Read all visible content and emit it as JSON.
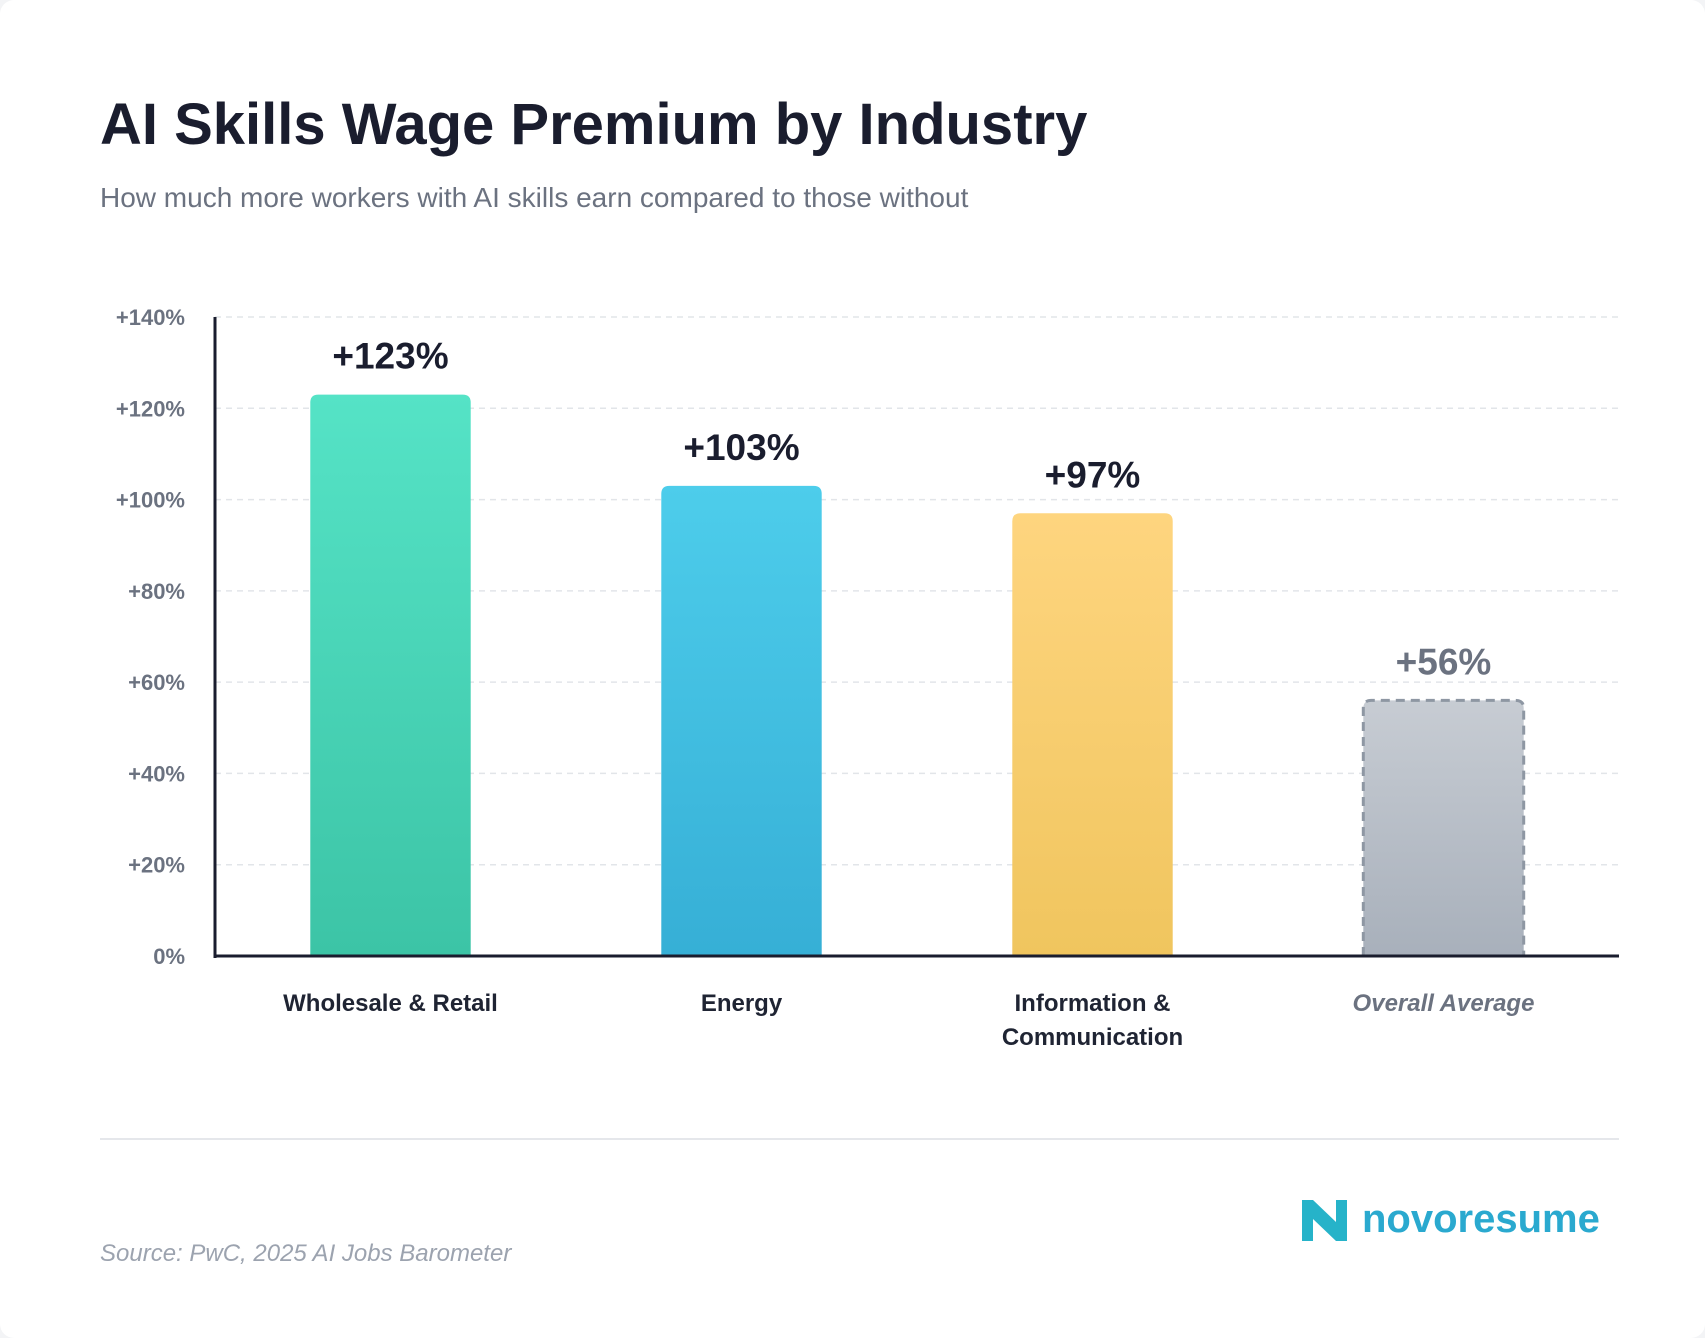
{
  "chart_data": {
    "type": "bar",
    "title": "AI Skills Wage Premium by Industry",
    "subtitle": "How much more workers with AI skills earn compared to those without",
    "categories": [
      "Wholesale & Retail",
      "Energy",
      "Information & Communication",
      "Overall Average"
    ],
    "values": [
      123,
      103,
      97,
      56
    ],
    "value_labels": [
      "+123%",
      "+103%",
      "+97%",
      "+56%"
    ],
    "colors": [
      [
        "#55e3c6",
        "#3cc4a6"
      ],
      [
        "#4dcdeb",
        "#36afd6"
      ],
      [
        "#fed57f",
        "#f0c55e"
      ],
      [
        "#c7ccd3",
        "#a8b0bb"
      ]
    ],
    "reference_index": 3,
    "ylim": [
      0,
      140
    ],
    "yticks": [
      {
        "value": 0,
        "label": "0%"
      },
      {
        "value": 20,
        "label": "+20%"
      },
      {
        "value": 40,
        "label": "+40%"
      },
      {
        "value": 60,
        "label": "+60%"
      },
      {
        "value": 80,
        "label": "+80%"
      },
      {
        "value": 100,
        "label": "+100%"
      },
      {
        "value": 120,
        "label": "+120%"
      },
      {
        "value": 140,
        "label": "+140%"
      }
    ],
    "grid": true,
    "source": "Source: PwC, 2025 AI Jobs Barometer",
    "brand": "novoresume"
  }
}
